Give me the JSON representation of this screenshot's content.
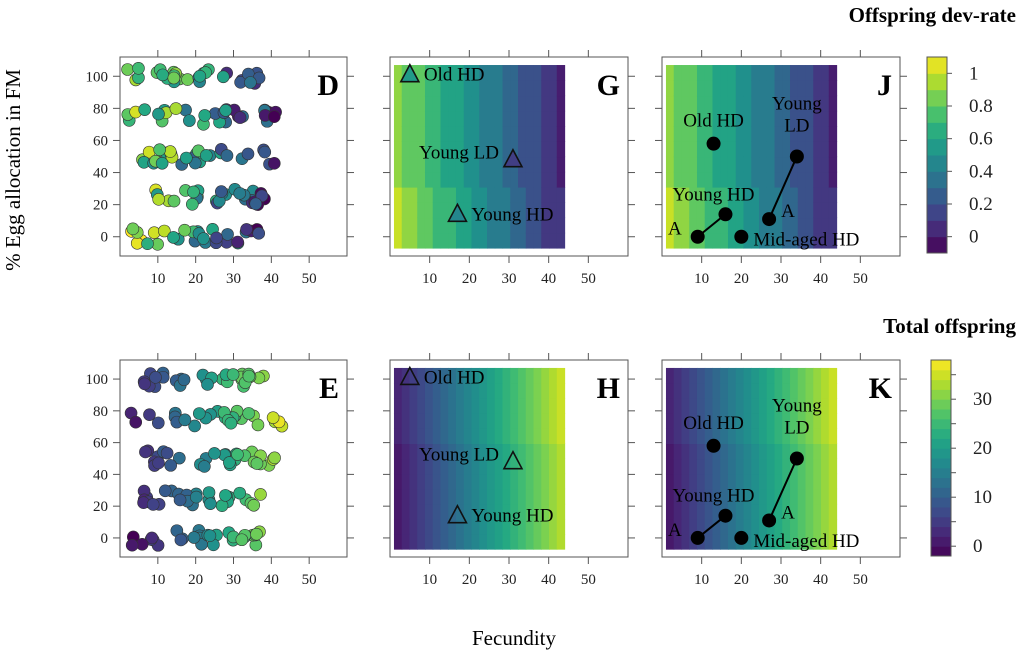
{
  "figure": {
    "ylabel": "% Egg allocation in FM",
    "xlabel": "Fecundity"
  },
  "chart_data": [
    {
      "id": "D",
      "type": "scatter",
      "panel_label": "D",
      "title": "",
      "xlabel": "Fecundity",
      "ylabel": "% Egg allocation in FM",
      "xlim": [
        0,
        60
      ],
      "ylim": [
        -12,
        112
      ],
      "xticks": [
        10,
        20,
        30,
        40,
        50
      ],
      "yticks": [
        0,
        20,
        40,
        60,
        80,
        100
      ],
      "color_by": "Offspring dev-rate",
      "groups": [
        {
          "y": 100,
          "x_range": [
            2,
            39
          ]
        },
        {
          "y": 75,
          "x_range": [
            2,
            43
          ]
        },
        {
          "y": 50,
          "x_range": [
            5,
            41
          ]
        },
        {
          "y": 25,
          "x_range": [
            6,
            39
          ]
        },
        {
          "y": 0,
          "x_range": [
            3,
            38
          ]
        }
      ],
      "trend": "color decreases (yellow to purple) as fecundity increases"
    },
    {
      "id": "E",
      "type": "scatter",
      "panel_label": "E",
      "xlim": [
        0,
        60
      ],
      "ylim": [
        -12,
        112
      ],
      "xticks": [
        10,
        20,
        30,
        40,
        50
      ],
      "yticks": [
        0,
        20,
        40,
        60,
        80,
        100
      ],
      "color_by": "Total offspring",
      "groups": [
        {
          "y": 100,
          "x_range": [
            2,
            39
          ]
        },
        {
          "y": 75,
          "x_range": [
            2,
            43
          ]
        },
        {
          "y": 50,
          "x_range": [
            6,
            41
          ]
        },
        {
          "y": 25,
          "x_range": [
            6,
            38
          ]
        },
        {
          "y": 0,
          "x_range": [
            3,
            38
          ]
        }
      ],
      "trend": "color increases (purple to yellow-green) as fecundity increases"
    },
    {
      "id": "G",
      "type": "heatmap",
      "panel_label": "G",
      "xlim": [
        0,
        60
      ],
      "ylim": [
        -12,
        112
      ],
      "xticks": [
        10,
        20,
        30,
        40,
        50
      ],
      "grid_x_range": [
        1,
        44
      ],
      "grid_y_range": [
        -7,
        107
      ],
      "color_variable": "Offspring dev-rate",
      "colorscale": "viridis",
      "markers": [
        {
          "label": "Old HD",
          "x": 5,
          "y": 101,
          "shape": "triangle",
          "value": 0.55
        },
        {
          "label": "Young LD",
          "x": 31,
          "y": 48,
          "shape": "triangle",
          "value": 0.12
        },
        {
          "label": "Young HD",
          "x": 17,
          "y": 14,
          "shape": "triangle",
          "value": 0.45
        }
      ]
    },
    {
      "id": "H",
      "type": "heatmap",
      "panel_label": "H",
      "xlim": [
        0,
        60
      ],
      "ylim": [
        -12,
        112
      ],
      "xticks": [
        10,
        20,
        30,
        40,
        50
      ],
      "grid_x_range": [
        1,
        44
      ],
      "grid_y_range": [
        -7,
        107
      ],
      "color_variable": "Total offspring",
      "colorscale": "viridis",
      "markers": [
        {
          "label": "Old HD",
          "x": 5,
          "y": 101,
          "shape": "triangle-open"
        },
        {
          "label": "Young LD",
          "x": 31,
          "y": 48,
          "shape": "triangle-open"
        },
        {
          "label": "Young HD",
          "x": 17,
          "y": 14,
          "shape": "triangle-open"
        }
      ]
    },
    {
      "id": "J",
      "type": "heatmap",
      "panel_label": "J",
      "xlim": [
        0,
        60
      ],
      "ylim": [
        -12,
        112
      ],
      "xticks": [
        10,
        20,
        30,
        40,
        50
      ],
      "grid_x_range": [
        1,
        44
      ],
      "grid_y_range": [
        -7,
        107
      ],
      "color_variable": "Offspring dev-rate",
      "colorscale": "viridis",
      "points": [
        {
          "label": "Old HD",
          "x": 13,
          "y": 58
        },
        {
          "label": "Young LD",
          "x": 34,
          "y": 50
        },
        {
          "label": "Young HD",
          "x": 16,
          "y": 14
        },
        {
          "label": "Mid-aged HD",
          "x": 20,
          "y": 0
        },
        {
          "label": "A",
          "x": 9,
          "y": 0
        },
        {
          "label": "A",
          "x": 27,
          "y": 11
        }
      ],
      "segments": [
        {
          "from": [
            9,
            0
          ],
          "to": [
            16,
            14
          ]
        },
        {
          "from": [
            27,
            11
          ],
          "to": [
            34,
            50
          ]
        }
      ]
    },
    {
      "id": "K",
      "type": "heatmap",
      "panel_label": "K",
      "xlim": [
        0,
        60
      ],
      "ylim": [
        -12,
        112
      ],
      "xticks": [
        10,
        20,
        30,
        40,
        50
      ],
      "grid_x_range": [
        1,
        44
      ],
      "grid_y_range": [
        -7,
        107
      ],
      "color_variable": "Total offspring",
      "colorscale": "viridis",
      "points": [
        {
          "label": "Old HD",
          "x": 13,
          "y": 58
        },
        {
          "label": "Young LD",
          "x": 34,
          "y": 50
        },
        {
          "label": "Young HD",
          "x": 16,
          "y": 14
        },
        {
          "label": "Mid-aged HD",
          "x": 20,
          "y": 0
        },
        {
          "label": "A",
          "x": 9,
          "y": 0
        },
        {
          "label": "A",
          "x": 27,
          "y": 11
        }
      ],
      "segments": [
        {
          "from": [
            9,
            0
          ],
          "to": [
            16,
            14
          ]
        },
        {
          "from": [
            27,
            11
          ],
          "to": [
            34,
            50
          ]
        }
      ]
    },
    {
      "id": "cb1",
      "type": "colorbar",
      "title": "Offspring dev-rate",
      "range": [
        -0.1,
        1.1
      ],
      "ticks": [
        0,
        0.2,
        0.4,
        0.6,
        0.8,
        1
      ],
      "tick_labels": [
        "0",
        "0.2",
        "0.4",
        "0.6",
        "0.8",
        "1"
      ],
      "bins": 12
    },
    {
      "id": "cb2",
      "type": "colorbar",
      "title": "Total offspring",
      "range": [
        -2,
        38
      ],
      "ticks": [
        0,
        5,
        10,
        15,
        20,
        25,
        30,
        35
      ],
      "tick_labels": [
        "0",
        "",
        "10",
        "",
        "20",
        "",
        "30",
        ""
      ],
      "bins": 20
    }
  ]
}
